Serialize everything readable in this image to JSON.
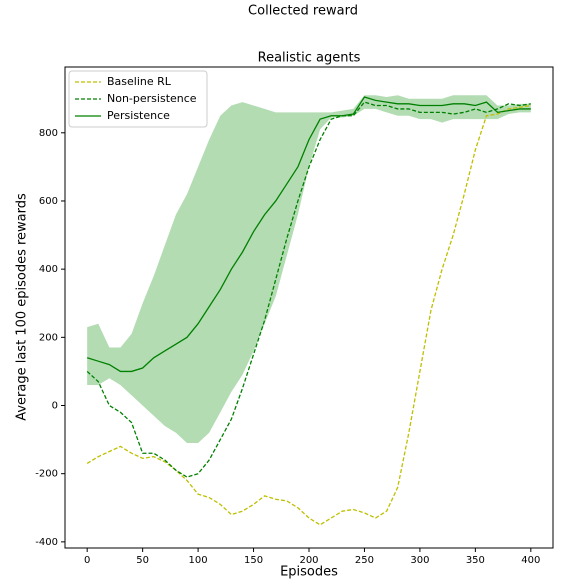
{
  "chart_data": {
    "type": "line",
    "suptitle": "Collected reward",
    "title": "Realistic agents",
    "xlabel": "Episodes",
    "ylabel": "Average last 100 episodes rewards",
    "x": [
      0,
      10,
      20,
      30,
      40,
      50,
      60,
      70,
      80,
      90,
      100,
      110,
      120,
      130,
      140,
      150,
      160,
      170,
      180,
      190,
      200,
      210,
      220,
      230,
      240,
      250,
      260,
      270,
      280,
      290,
      300,
      310,
      320,
      330,
      340,
      350,
      360,
      370,
      380,
      390,
      400
    ],
    "series": [
      {
        "name": "Baseline RL",
        "color": "#bfbf00",
        "dashed": true,
        "values": [
          -170,
          -150,
          -135,
          -120,
          -140,
          -155,
          -150,
          -165,
          -190,
          -220,
          -260,
          -270,
          -290,
          -320,
          -310,
          -290,
          -265,
          -275,
          -280,
          -300,
          -330,
          -350,
          -330,
          -310,
          -305,
          -315,
          -330,
          -310,
          -240,
          -80,
          100,
          280,
          400,
          500,
          620,
          750,
          850,
          855,
          870,
          875,
          880
        ]
      },
      {
        "name": "Non-persistence",
        "color": "#008000",
        "dashed": true,
        "values": [
          100,
          70,
          0,
          -20,
          -50,
          -140,
          -140,
          -160,
          -190,
          -210,
          -200,
          -160,
          -100,
          -40,
          50,
          150,
          250,
          370,
          490,
          600,
          700,
          780,
          840,
          850,
          850,
          890,
          880,
          880,
          870,
          870,
          860,
          860,
          860,
          855,
          860,
          870,
          860,
          870,
          885,
          880,
          885
        ]
      },
      {
        "name": "Persistence",
        "color": "#008000",
        "dashed": false,
        "values": [
          140,
          130,
          120,
          100,
          100,
          110,
          140,
          160,
          180,
          200,
          240,
          290,
          340,
          400,
          450,
          510,
          560,
          600,
          650,
          700,
          780,
          840,
          850,
          850,
          855,
          905,
          895,
          890,
          885,
          885,
          880,
          880,
          880,
          885,
          885,
          880,
          890,
          860,
          865,
          870,
          870
        ],
        "band_color": "#b3dcb3",
        "upper": [
          230,
          240,
          170,
          170,
          210,
          300,
          380,
          470,
          560,
          620,
          700,
          780,
          850,
          880,
          890,
          880,
          870,
          860,
          860,
          860,
          860,
          860,
          860,
          865,
          870,
          910,
          910,
          905,
          910,
          900,
          900,
          900,
          900,
          910,
          910,
          910,
          910,
          880,
          880,
          885,
          885
        ],
        "lower": [
          60,
          60,
          80,
          60,
          30,
          0,
          -30,
          -60,
          -80,
          -110,
          -110,
          -80,
          -20,
          40,
          90,
          160,
          240,
          320,
          440,
          560,
          700,
          810,
          845,
          845,
          850,
          870,
          870,
          860,
          850,
          850,
          840,
          840,
          830,
          840,
          840,
          840,
          840,
          840,
          855,
          860,
          860
        ]
      }
    ],
    "xlim": [
      -20,
      420
    ],
    "ylim": [
      -418,
      993
    ],
    "xticks": [
      0,
      50,
      100,
      150,
      200,
      250,
      300,
      350,
      400
    ],
    "yticks": [
      -400,
      -200,
      0,
      200,
      400,
      600,
      800
    ],
    "legend": "upper left"
  }
}
